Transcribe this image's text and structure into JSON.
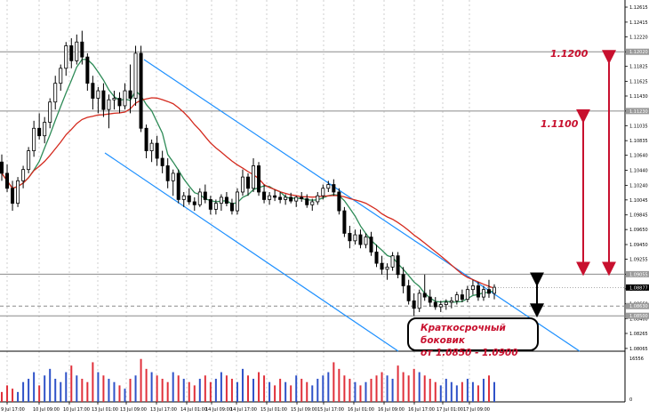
{
  "chart_data": {
    "type": "candlestick",
    "instrument": "EURUSD H4",
    "yaxis_ticks": [
      "1.12615",
      "1.12415",
      "1.12220",
      "1.12020",
      "1.11825",
      "1.11625",
      "1.11430",
      "1.11230",
      "1.11035",
      "1.10835",
      "1.10640",
      "1.10440",
      "1.10240",
      "1.10045",
      "1.09845",
      "1.09650",
      "1.09450",
      "1.09255",
      "1.09055",
      "1.08860",
      "1.08660",
      "1.08460",
      "1.08265",
      "1.08065"
    ],
    "ylim": [
      1.0804,
      1.1271
    ],
    "xaxis_ticks": [
      "9 Jul 17:00",
      "10 Jul 09:00",
      "10 Jul 17:00",
      "13 Jul 01:00",
      "13 Jul 09:00",
      "13 Jul 17:00",
      "14 Jul 01:00",
      "14 Jul 09:00",
      "14 Jul 17:00",
      "15 Jul 01:00",
      "15 Jul 09:00",
      "15 Jul 17:00",
      "16 Jul 01:00",
      "16 Jul 09:00",
      "16 Jul 17:00",
      "17 Jul 01:00",
      "17 Jul 09:00"
    ],
    "price_labels": {
      "level_1": "1.12020",
      "level_2": "1.11230",
      "level_3": "1.09055",
      "current": "1.08877",
      "level_4": "1.08630",
      "level_5": "1.08500"
    },
    "volume_ticks": [
      "16556",
      "0"
    ],
    "annotations": {
      "target_1": "1.1200",
      "target_2": "1.1100",
      "note_line1": "Краткосрочный боковик",
      "note_line2": "от 1.0850 - 1.0900"
    },
    "ohlc": [
      [
        1.1055,
        1.1065,
        1.103,
        1.104
      ],
      [
        1.104,
        1.1052,
        1.1015,
        1.102
      ],
      [
        1.102,
        1.103,
        1.099,
        1.1
      ],
      [
        1.1,
        1.1035,
        1.0995,
        1.103
      ],
      [
        1.103,
        1.105,
        1.102,
        1.1045
      ],
      [
        1.1045,
        1.1075,
        1.104,
        1.107
      ],
      [
        1.107,
        1.111,
        1.1062,
        1.11
      ],
      [
        1.11,
        1.112,
        1.1085,
        1.109
      ],
      [
        1.109,
        1.1115,
        1.108,
        1.1108
      ],
      [
        1.1108,
        1.114,
        1.11,
        1.1135
      ],
      [
        1.1135,
        1.117,
        1.1125,
        1.116
      ],
      [
        1.116,
        1.1185,
        1.115,
        1.118
      ],
      [
        1.118,
        1.1215,
        1.117,
        1.121
      ],
      [
        1.121,
        1.122,
        1.118,
        1.119
      ],
      [
        1.119,
        1.1225,
        1.1185,
        1.1215
      ],
      [
        1.1215,
        1.123,
        1.1185,
        1.1195
      ],
      [
        1.1195,
        1.12,
        1.115,
        1.116
      ],
      [
        1.116,
        1.117,
        1.1125,
        1.114
      ],
      [
        1.114,
        1.1155,
        1.112,
        1.115
      ],
      [
        1.115,
        1.116,
        1.1115,
        1.1125
      ],
      [
        1.1125,
        1.1145,
        1.11,
        1.1138
      ],
      [
        1.1138,
        1.115,
        1.1125,
        1.114
      ],
      [
        1.114,
        1.1148,
        1.112,
        1.113
      ],
      [
        1.113,
        1.116,
        1.1125,
        1.115
      ],
      [
        1.115,
        1.1185,
        1.112,
        1.114
      ],
      [
        1.114,
        1.121,
        1.113,
        1.12
      ],
      [
        1.12,
        1.121,
        1.1095,
        1.11
      ],
      [
        1.11,
        1.1105,
        1.106,
        1.107
      ],
      [
        1.107,
        1.1085,
        1.1055,
        1.108
      ],
      [
        1.108,
        1.109,
        1.105,
        1.106
      ],
      [
        1.106,
        1.107,
        1.104,
        1.105
      ],
      [
        1.105,
        1.106,
        1.102,
        1.103
      ],
      [
        1.103,
        1.1045,
        1.101,
        1.104
      ],
      [
        1.104,
        1.1045,
        1.1,
        1.1005
      ],
      [
        1.1005,
        1.1015,
        1.0995,
        1.101
      ],
      [
        1.101,
        1.102,
        1.0998,
        1.1002
      ],
      [
        1.1002,
        1.1008,
        1.099,
        1.0998
      ],
      [
        1.0998,
        1.102,
        1.0995,
        1.1015
      ],
      [
        1.1015,
        1.1025,
        1.1,
        1.1005
      ],
      [
        1.1005,
        1.101,
        1.0985,
        1.0992
      ],
      [
        1.0992,
        1.1005,
        1.0985,
        1.1
      ],
      [
        1.1,
        1.1012,
        1.099,
        1.1008
      ],
      [
        1.1008,
        1.1015,
        1.0996,
        1.1
      ],
      [
        1.1,
        1.1006,
        1.0985,
        1.099
      ],
      [
        1.099,
        1.102,
        1.0985,
        1.1015
      ],
      [
        1.1015,
        1.1045,
        1.101,
        1.1035
      ],
      [
        1.1035,
        1.104,
        1.101,
        1.102
      ],
      [
        1.102,
        1.106,
        1.1015,
        1.105
      ],
      [
        1.105,
        1.1055,
        1.101,
        1.1015
      ],
      [
        1.1015,
        1.1025,
        1.1,
        1.1005
      ],
      [
        1.1005,
        1.1015,
        1.0998,
        1.101
      ],
      [
        1.101,
        1.1018,
        1.1003,
        1.1008
      ],
      [
        1.1008,
        1.1015,
        1.1,
        1.1005
      ],
      [
        1.1005,
        1.1012,
        1.0998,
        1.1008
      ],
      [
        1.1008,
        1.1014,
        1.1,
        1.1003
      ],
      [
        1.1003,
        1.101,
        1.0995,
        1.1008
      ],
      [
        1.1008,
        1.1015,
        1.1002,
        1.1006
      ],
      [
        1.1006,
        1.1012,
        1.0994,
        1.0998
      ],
      [
        1.0998,
        1.1006,
        1.099,
        1.1002
      ],
      [
        1.1002,
        1.1015,
        1.0998,
        1.101
      ],
      [
        1.101,
        1.1025,
        1.1005,
        1.102
      ],
      [
        1.102,
        1.103,
        1.1015,
        1.1025
      ],
      [
        1.1025,
        1.1032,
        1.101,
        1.1015
      ],
      [
        1.1015,
        1.102,
        1.0985,
        1.099
      ],
      [
        1.099,
        1.0995,
        1.0955,
        1.096
      ],
      [
        1.096,
        1.097,
        1.094,
        1.095
      ],
      [
        1.095,
        1.0965,
        1.0945,
        1.0958
      ],
      [
        1.0958,
        1.0965,
        1.094,
        1.0945
      ],
      [
        1.0945,
        1.096,
        1.094,
        1.0955
      ],
      [
        1.0955,
        1.0962,
        1.093,
        1.0935
      ],
      [
        1.0935,
        1.0945,
        1.0915,
        1.092
      ],
      [
        1.092,
        1.093,
        1.0905,
        1.0912
      ],
      [
        1.0912,
        1.092,
        1.0898,
        1.0915
      ],
      [
        1.0915,
        1.0935,
        1.091,
        1.093
      ],
      [
        1.093,
        1.0935,
        1.09,
        1.0905
      ],
      [
        1.0905,
        1.0915,
        1.088,
        1.089
      ],
      [
        1.089,
        1.0898,
        1.0865,
        1.087
      ],
      [
        1.087,
        1.088,
        1.085,
        1.086
      ],
      [
        1.086,
        1.0885,
        1.0855,
        1.088
      ],
      [
        1.088,
        1.0905,
        1.087,
        1.0875
      ],
      [
        1.0875,
        1.0885,
        1.0862,
        1.0868
      ],
      [
        1.0868,
        1.0875,
        1.0858,
        1.0862
      ],
      [
        1.0862,
        1.087,
        1.0855,
        1.0865
      ],
      [
        1.0865,
        1.0872,
        1.0858,
        1.0868
      ],
      [
        1.0868,
        1.0875,
        1.086,
        1.087
      ],
      [
        1.087,
        1.0882,
        1.0865,
        1.0878
      ],
      [
        1.0878,
        1.0885,
        1.0868,
        1.0872
      ],
      [
        1.0872,
        1.089,
        1.0868,
        1.0885
      ],
      [
        1.0885,
        1.0898,
        1.0878,
        1.089
      ],
      [
        1.089,
        1.0895,
        1.087,
        1.0875
      ],
      [
        1.0875,
        1.089,
        1.087,
        1.0885
      ],
      [
        1.0885,
        1.0898,
        1.0874,
        1.088
      ],
      [
        1.088,
        1.0892,
        1.0872,
        1.0888
      ]
    ],
    "volumes": [
      3,
      5,
      4,
      3,
      6,
      7,
      9,
      5,
      8,
      10,
      7,
      6,
      9,
      11,
      8,
      7,
      6,
      12,
      9,
      8,
      7,
      6,
      5,
      4,
      7,
      8,
      13,
      10,
      9,
      8,
      7,
      6,
      9,
      8,
      7,
      6,
      5,
      7,
      8,
      6,
      7,
      9,
      8,
      7,
      6,
      10,
      8,
      7,
      9,
      8,
      6,
      5,
      7,
      6,
      5,
      8,
      7,
      6,
      5,
      7,
      8,
      9,
      12,
      10,
      8,
      7,
      6,
      5,
      6,
      7,
      8,
      9,
      8,
      7,
      11,
      9,
      8,
      10,
      9,
      8,
      7,
      6,
      5,
      7,
      6,
      5,
      6,
      7,
      6,
      5,
      7,
      8,
      6
    ]
  }
}
